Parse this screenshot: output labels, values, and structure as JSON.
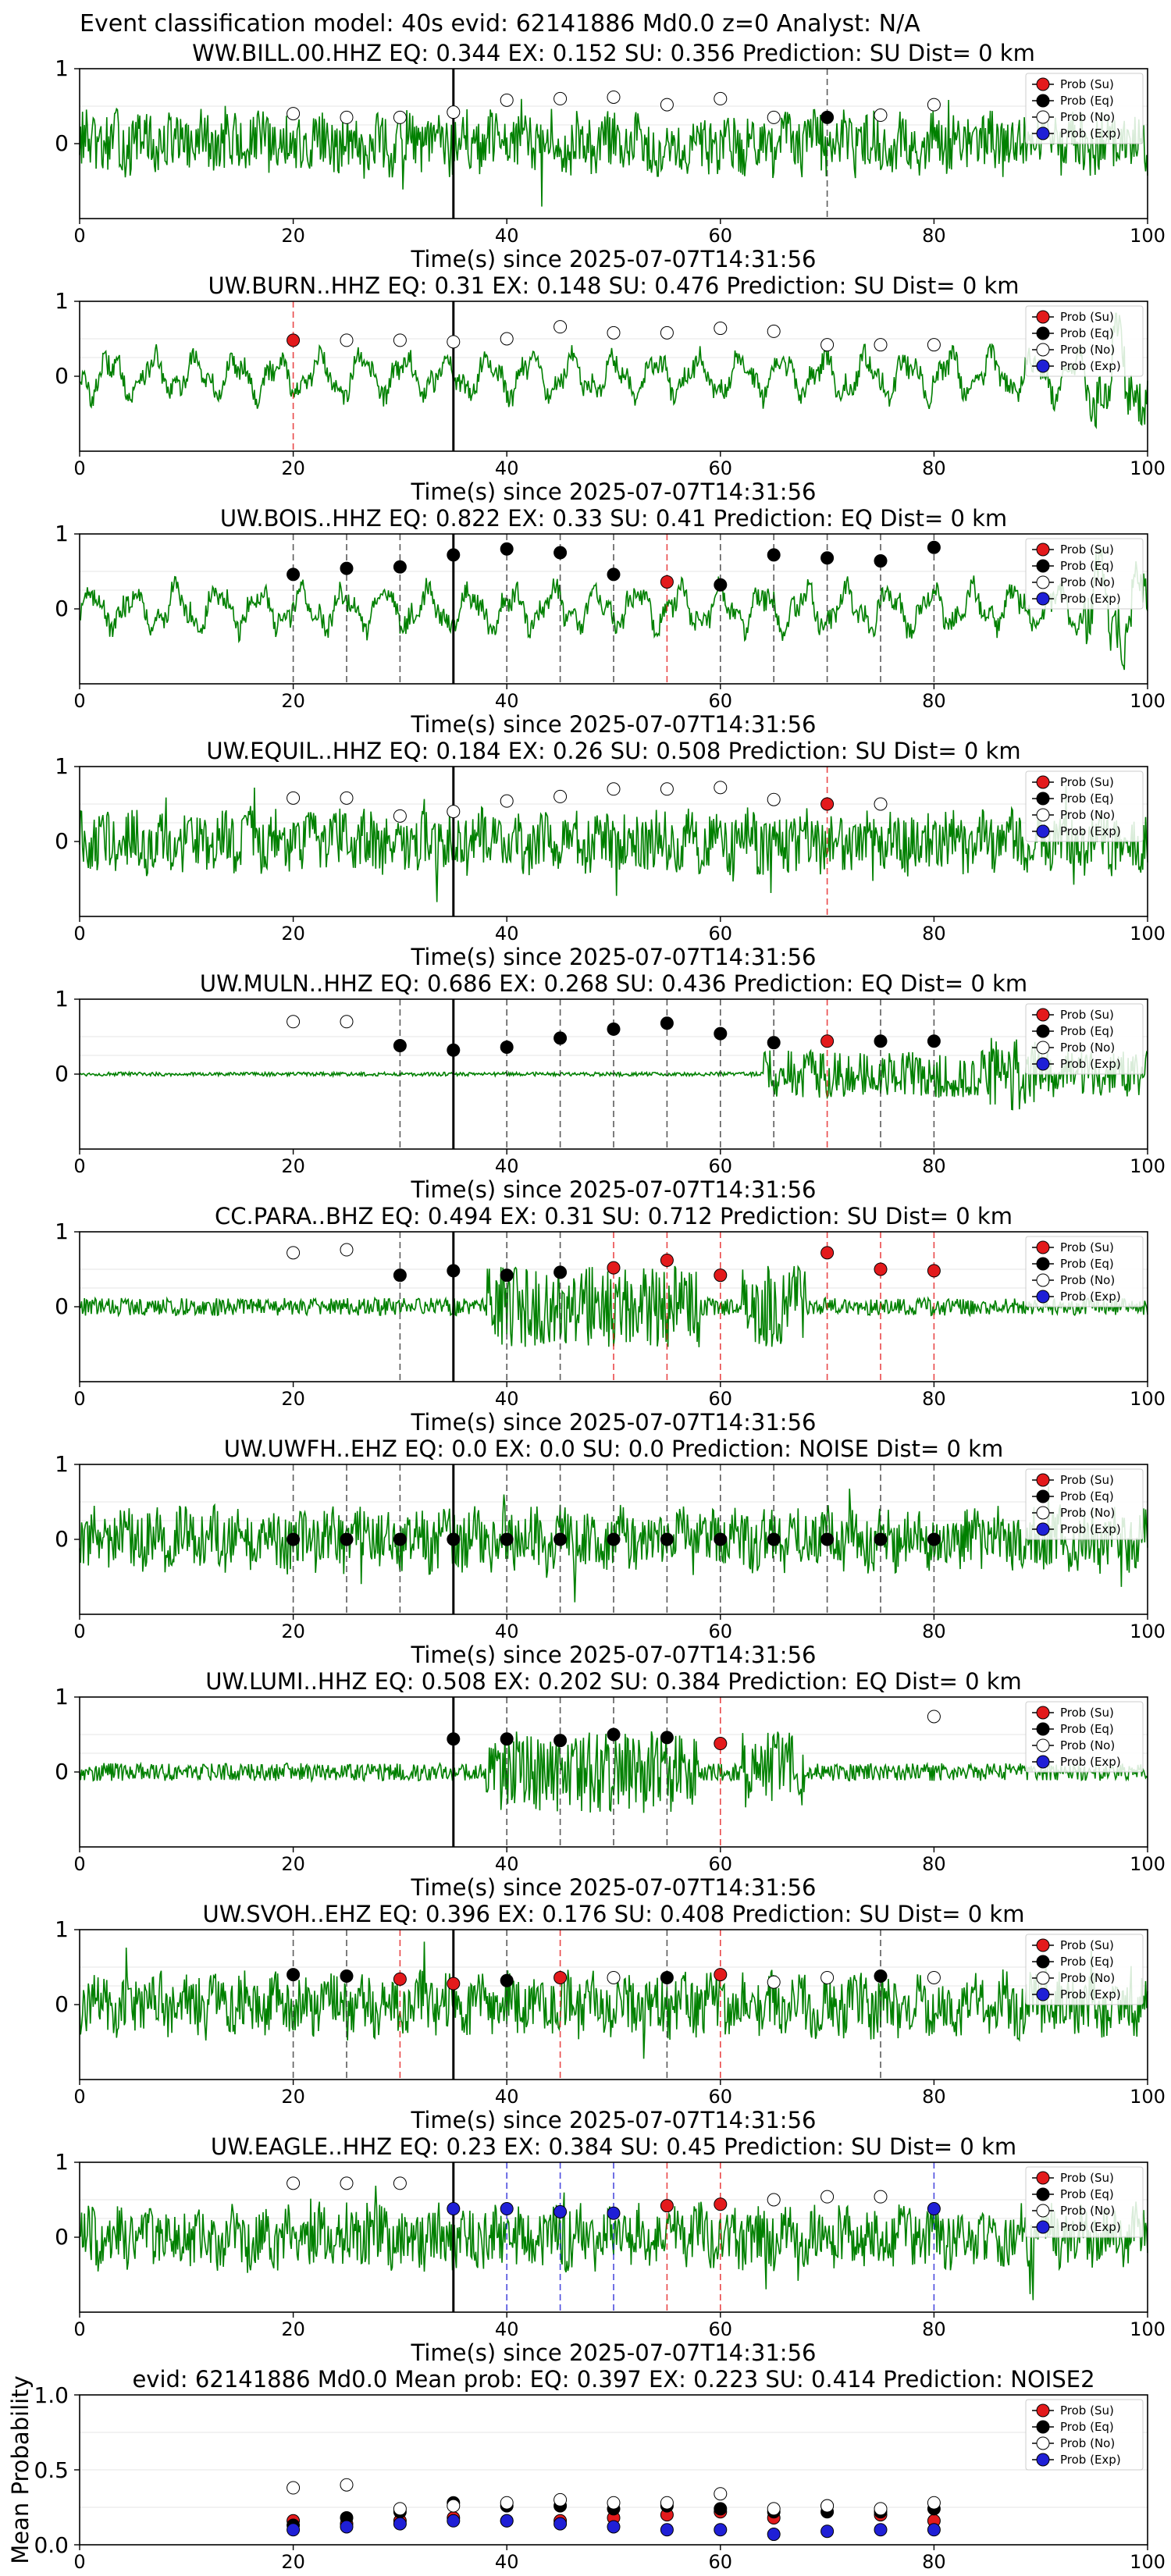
{
  "figure_title": "Event classification model: 40s evid: 62141886 Md0.0 z=0 Analyst: N/A",
  "legend_labels": [
    "Prob (Su)",
    "Prob (Eq)",
    "Prob (No)",
    "Prob (Exp)"
  ],
  "colors": {
    "su": "#e31a1c",
    "eq": "#000000",
    "no": "#ffffff",
    "exp": "#1f1fd6",
    "trace": "#008000",
    "vline_main": "#000000",
    "grid": "#e6e6e6"
  },
  "chart_data": [
    {
      "type": "line",
      "title": "WW.BILL.00.HHZ   EQ: 0.344  EX: 0.152  SU: 0.356   Prediction: SU    Dist= 0 km",
      "xlabel": "Time(s) since 2025-07-07T14:31:56",
      "xlim": [
        0,
        100
      ],
      "ylim": [
        -1,
        1
      ],
      "xticks": [
        0,
        20,
        40,
        60,
        80,
        100
      ],
      "yticks": [
        0,
        1
      ],
      "vline": 35,
      "trace_style": "noise",
      "markers": [
        {
          "t": 20,
          "p": 0.4,
          "c": "no"
        },
        {
          "t": 25,
          "p": 0.35,
          "c": "no"
        },
        {
          "t": 30,
          "p": 0.35,
          "c": "no"
        },
        {
          "t": 35,
          "p": 0.42,
          "c": "no"
        },
        {
          "t": 40,
          "p": 0.58,
          "c": "no"
        },
        {
          "t": 45,
          "p": 0.6,
          "c": "no"
        },
        {
          "t": 50,
          "p": 0.62,
          "c": "no"
        },
        {
          "t": 55,
          "p": 0.52,
          "c": "no"
        },
        {
          "t": 60,
          "p": 0.6,
          "c": "no"
        },
        {
          "t": 65,
          "p": 0.35,
          "c": "no"
        },
        {
          "t": 70,
          "p": 0.35,
          "c": "eq"
        },
        {
          "t": 75,
          "p": 0.38,
          "c": "no"
        },
        {
          "t": 80,
          "p": 0.52,
          "c": "no"
        }
      ]
    },
    {
      "type": "line",
      "title": "UW.BURN..HHZ   EQ: 0.31  EX: 0.148  SU: 0.476   Prediction: SU    Dist= 0 km",
      "xlabel": "Time(s) since 2025-07-07T14:31:56",
      "xlim": [
        0,
        100
      ],
      "ylim": [
        -1,
        1
      ],
      "xticks": [
        0,
        20,
        40,
        60,
        80,
        100
      ],
      "yticks": [
        0,
        1
      ],
      "vline": 35,
      "trace_style": "wavy",
      "markers": [
        {
          "t": 20,
          "p": 0.48,
          "c": "su"
        },
        {
          "t": 25,
          "p": 0.48,
          "c": "no"
        },
        {
          "t": 30,
          "p": 0.48,
          "c": "no"
        },
        {
          "t": 35,
          "p": 0.46,
          "c": "no"
        },
        {
          "t": 40,
          "p": 0.5,
          "c": "no"
        },
        {
          "t": 45,
          "p": 0.66,
          "c": "no"
        },
        {
          "t": 50,
          "p": 0.58,
          "c": "no"
        },
        {
          "t": 55,
          "p": 0.58,
          "c": "no"
        },
        {
          "t": 60,
          "p": 0.64,
          "c": "no"
        },
        {
          "t": 65,
          "p": 0.6,
          "c": "no"
        },
        {
          "t": 70,
          "p": 0.42,
          "c": "no"
        },
        {
          "t": 75,
          "p": 0.42,
          "c": "no"
        },
        {
          "t": 80,
          "p": 0.42,
          "c": "no"
        }
      ]
    },
    {
      "type": "line",
      "title": "UW.BOIS..HHZ   EQ: 0.822  EX: 0.33  SU: 0.41   Prediction: EQ    Dist= 0 km",
      "xlabel": "Time(s) since 2025-07-07T14:31:56",
      "xlim": [
        0,
        100
      ],
      "ylim": [
        -1,
        1
      ],
      "xticks": [
        0,
        20,
        40,
        60,
        80,
        100
      ],
      "yticks": [
        0,
        1
      ],
      "vline": 35,
      "trace_style": "wavy",
      "markers": [
        {
          "t": 20,
          "p": 0.46,
          "c": "eq"
        },
        {
          "t": 25,
          "p": 0.54,
          "c": "eq"
        },
        {
          "t": 30,
          "p": 0.56,
          "c": "eq"
        },
        {
          "t": 35,
          "p": 0.72,
          "c": "eq"
        },
        {
          "t": 40,
          "p": 0.8,
          "c": "eq"
        },
        {
          "t": 45,
          "p": 0.75,
          "c": "eq"
        },
        {
          "t": 50,
          "p": 0.46,
          "c": "eq"
        },
        {
          "t": 55,
          "p": 0.36,
          "c": "su"
        },
        {
          "t": 60,
          "p": 0.32,
          "c": "eq"
        },
        {
          "t": 65,
          "p": 0.72,
          "c": "eq"
        },
        {
          "t": 70,
          "p": 0.68,
          "c": "eq"
        },
        {
          "t": 75,
          "p": 0.64,
          "c": "eq"
        },
        {
          "t": 80,
          "p": 0.82,
          "c": "eq"
        }
      ]
    },
    {
      "type": "line",
      "title": "UW.EQUIL..HHZ   EQ: 0.184  EX: 0.26  SU: 0.508   Prediction: SU    Dist= 0 km",
      "xlabel": "Time(s) since 2025-07-07T14:31:56",
      "xlim": [
        0,
        100
      ],
      "ylim": [
        -1,
        1
      ],
      "xticks": [
        0,
        20,
        40,
        60,
        80,
        100
      ],
      "yticks": [
        0,
        1
      ],
      "vline": 35,
      "trace_style": "noise",
      "markers": [
        {
          "t": 20,
          "p": 0.58,
          "c": "no"
        },
        {
          "t": 25,
          "p": 0.58,
          "c": "no"
        },
        {
          "t": 30,
          "p": 0.34,
          "c": "no"
        },
        {
          "t": 35,
          "p": 0.4,
          "c": "no"
        },
        {
          "t": 40,
          "p": 0.54,
          "c": "no"
        },
        {
          "t": 45,
          "p": 0.6,
          "c": "no"
        },
        {
          "t": 50,
          "p": 0.7,
          "c": "no"
        },
        {
          "t": 55,
          "p": 0.7,
          "c": "no"
        },
        {
          "t": 60,
          "p": 0.72,
          "c": "no"
        },
        {
          "t": 65,
          "p": 0.56,
          "c": "no"
        },
        {
          "t": 70,
          "p": 0.5,
          "c": "su"
        },
        {
          "t": 75,
          "p": 0.5,
          "c": "no"
        }
      ]
    },
    {
      "type": "line",
      "title": "UW.MULN..HHZ   EQ: 0.686  EX: 0.268  SU: 0.436   Prediction: EQ    Dist= 0 km",
      "xlabel": "Time(s) since 2025-07-07T14:31:56",
      "xlim": [
        0,
        100
      ],
      "ylim": [
        -1,
        1
      ],
      "xticks": [
        0,
        20,
        40,
        60,
        80,
        100
      ],
      "yticks": [
        0,
        1
      ],
      "vline": 35,
      "trace_style": "quiet",
      "markers": [
        {
          "t": 20,
          "p": 0.7,
          "c": "no"
        },
        {
          "t": 25,
          "p": 0.7,
          "c": "no"
        },
        {
          "t": 30,
          "p": 0.38,
          "c": "eq"
        },
        {
          "t": 35,
          "p": 0.32,
          "c": "eq"
        },
        {
          "t": 40,
          "p": 0.36,
          "c": "eq"
        },
        {
          "t": 45,
          "p": 0.48,
          "c": "eq"
        },
        {
          "t": 50,
          "p": 0.6,
          "c": "eq"
        },
        {
          "t": 55,
          "p": 0.68,
          "c": "eq"
        },
        {
          "t": 60,
          "p": 0.54,
          "c": "eq"
        },
        {
          "t": 65,
          "p": 0.42,
          "c": "eq"
        },
        {
          "t": 70,
          "p": 0.44,
          "c": "su"
        },
        {
          "t": 75,
          "p": 0.44,
          "c": "eq"
        },
        {
          "t": 80,
          "p": 0.44,
          "c": "eq"
        }
      ]
    },
    {
      "type": "line",
      "title": "CC.PARA..BHZ   EQ: 0.494  EX: 0.31  SU: 0.712   Prediction: SU    Dist= 0 km",
      "xlabel": "Time(s) since 2025-07-07T14:31:56",
      "xlim": [
        0,
        100
      ],
      "ylim": [
        -1,
        1
      ],
      "xticks": [
        0,
        20,
        40,
        60,
        80,
        100
      ],
      "yticks": [
        0,
        1
      ],
      "vline": 35,
      "trace_style": "bursts",
      "markers": [
        {
          "t": 20,
          "p": 0.72,
          "c": "no"
        },
        {
          "t": 25,
          "p": 0.76,
          "c": "no"
        },
        {
          "t": 30,
          "p": 0.42,
          "c": "eq"
        },
        {
          "t": 35,
          "p": 0.48,
          "c": "eq"
        },
        {
          "t": 40,
          "p": 0.42,
          "c": "eq"
        },
        {
          "t": 45,
          "p": 0.46,
          "c": "eq"
        },
        {
          "t": 50,
          "p": 0.52,
          "c": "su"
        },
        {
          "t": 55,
          "p": 0.62,
          "c": "su"
        },
        {
          "t": 60,
          "p": 0.42,
          "c": "su"
        },
        {
          "t": 70,
          "p": 0.72,
          "c": "su"
        },
        {
          "t": 75,
          "p": 0.5,
          "c": "su"
        },
        {
          "t": 80,
          "p": 0.48,
          "c": "su"
        }
      ]
    },
    {
      "type": "line",
      "title": "UW.UWFH..EHZ   EQ: 0.0  EX: 0.0  SU: 0.0   Prediction: NOISE    Dist= 0 km",
      "xlabel": "Time(s) since 2025-07-07T14:31:56",
      "xlim": [
        0,
        100
      ],
      "ylim": [
        -1,
        1
      ],
      "xticks": [
        0,
        20,
        40,
        60,
        80,
        100
      ],
      "yticks": [
        0,
        1
      ],
      "vline": 35,
      "trace_style": "noise",
      "markers": [
        {
          "t": 20,
          "p": 0.0,
          "c": "eq"
        },
        {
          "t": 25,
          "p": 0.0,
          "c": "eq"
        },
        {
          "t": 30,
          "p": 0.0,
          "c": "eq"
        },
        {
          "t": 35,
          "p": 0.0,
          "c": "eq"
        },
        {
          "t": 40,
          "p": 0.0,
          "c": "eq"
        },
        {
          "t": 45,
          "p": 0.0,
          "c": "eq"
        },
        {
          "t": 50,
          "p": 0.0,
          "c": "eq"
        },
        {
          "t": 55,
          "p": 0.0,
          "c": "eq"
        },
        {
          "t": 60,
          "p": 0.0,
          "c": "eq"
        },
        {
          "t": 65,
          "p": 0.0,
          "c": "eq"
        },
        {
          "t": 70,
          "p": 0.0,
          "c": "eq"
        },
        {
          "t": 75,
          "p": 0.0,
          "c": "eq"
        },
        {
          "t": 80,
          "p": 0.0,
          "c": "eq"
        }
      ]
    },
    {
      "type": "line",
      "title": "UW.LUMI..HHZ   EQ: 0.508  EX: 0.202  SU: 0.384   Prediction: EQ    Dist= 0 km",
      "xlabel": "Time(s) since 2025-07-07T14:31:56",
      "xlim": [
        0,
        100
      ],
      "ylim": [
        -1,
        1
      ],
      "xticks": [
        0,
        20,
        40,
        60,
        80,
        100
      ],
      "yticks": [
        0,
        1
      ],
      "vline": 35,
      "trace_style": "bursts",
      "markers": [
        {
          "t": 35,
          "p": 0.44,
          "c": "eq"
        },
        {
          "t": 40,
          "p": 0.44,
          "c": "eq"
        },
        {
          "t": 45,
          "p": 0.42,
          "c": "eq"
        },
        {
          "t": 50,
          "p": 0.5,
          "c": "eq"
        },
        {
          "t": 55,
          "p": 0.46,
          "c": "eq"
        },
        {
          "t": 60,
          "p": 0.38,
          "c": "su"
        },
        {
          "t": 80,
          "p": 0.74,
          "c": "no"
        }
      ]
    },
    {
      "type": "line",
      "title": "UW.SVOH..EHZ   EQ: 0.396  EX: 0.176  SU: 0.408   Prediction: SU    Dist= 0 km",
      "xlabel": "Time(s) since 2025-07-07T14:31:56",
      "xlim": [
        0,
        100
      ],
      "ylim": [
        -1,
        1
      ],
      "xticks": [
        0,
        20,
        40,
        60,
        80,
        100
      ],
      "yticks": [
        0,
        1
      ],
      "vline": 35,
      "trace_style": "noise",
      "markers": [
        {
          "t": 20,
          "p": 0.4,
          "c": "eq"
        },
        {
          "t": 25,
          "p": 0.38,
          "c": "eq"
        },
        {
          "t": 30,
          "p": 0.34,
          "c": "su"
        },
        {
          "t": 35,
          "p": 0.28,
          "c": "su"
        },
        {
          "t": 40,
          "p": 0.32,
          "c": "eq"
        },
        {
          "t": 45,
          "p": 0.36,
          "c": "su"
        },
        {
          "t": 50,
          "p": 0.36,
          "c": "no"
        },
        {
          "t": 55,
          "p": 0.36,
          "c": "eq"
        },
        {
          "t": 60,
          "p": 0.4,
          "c": "su"
        },
        {
          "t": 65,
          "p": 0.3,
          "c": "no"
        },
        {
          "t": 70,
          "p": 0.36,
          "c": "no"
        },
        {
          "t": 75,
          "p": 0.38,
          "c": "eq"
        },
        {
          "t": 80,
          "p": 0.36,
          "c": "no"
        }
      ]
    },
    {
      "type": "line",
      "title": "UW.EAGLE..HHZ   EQ: 0.23  EX: 0.384  SU: 0.45   Prediction: SU    Dist= 0 km",
      "xlabel": "Time(s) since 2025-07-07T14:31:56",
      "xlim": [
        0,
        100
      ],
      "ylim": [
        -1,
        1
      ],
      "xticks": [
        0,
        20,
        40,
        60,
        80,
        100
      ],
      "yticks": [
        0,
        1
      ],
      "vline": 35,
      "trace_style": "noise",
      "markers": [
        {
          "t": 20,
          "p": 0.72,
          "c": "no"
        },
        {
          "t": 25,
          "p": 0.72,
          "c": "no"
        },
        {
          "t": 30,
          "p": 0.72,
          "c": "no"
        },
        {
          "t": 35,
          "p": 0.38,
          "c": "exp"
        },
        {
          "t": 40,
          "p": 0.38,
          "c": "exp"
        },
        {
          "t": 45,
          "p": 0.34,
          "c": "exp"
        },
        {
          "t": 50,
          "p": 0.32,
          "c": "exp"
        },
        {
          "t": 55,
          "p": 0.42,
          "c": "su"
        },
        {
          "t": 60,
          "p": 0.44,
          "c": "su"
        },
        {
          "t": 65,
          "p": 0.5,
          "c": "no"
        },
        {
          "t": 70,
          "p": 0.54,
          "c": "no"
        },
        {
          "t": 75,
          "p": 0.54,
          "c": "no"
        },
        {
          "t": 80,
          "p": 0.38,
          "c": "exp"
        }
      ]
    },
    {
      "type": "scatter",
      "title": "evid: 62141886  Md0.0   Mean prob:   EQ: 0.397  EX: 0.223  SU: 0.414   Prediction: NOISE2",
      "ylabel": "Mean Probability",
      "xlim": [
        0,
        100
      ],
      "ylim": [
        0,
        1
      ],
      "xticks": [
        0,
        20,
        40,
        60,
        80,
        100
      ],
      "yticks": [
        0.0,
        0.5,
        1.0
      ],
      "series": [
        {
          "name": "Prob (Su)",
          "c": "su",
          "x": [
            20,
            25,
            30,
            35,
            40,
            45,
            50,
            55,
            60,
            65,
            70,
            75,
            80
          ],
          "y": [
            0.16,
            0.14,
            0.16,
            0.18,
            0.16,
            0.16,
            0.18,
            0.2,
            0.22,
            0.18,
            0.26,
            0.2,
            0.16
          ]
        },
        {
          "name": "Prob (Eq)",
          "c": "eq",
          "x": [
            20,
            25,
            30,
            35,
            40,
            45,
            50,
            55,
            60,
            65,
            70,
            75,
            80
          ],
          "y": [
            0.13,
            0.18,
            0.22,
            0.28,
            0.26,
            0.26,
            0.24,
            0.26,
            0.24,
            0.22,
            0.22,
            0.22,
            0.24
          ]
        },
        {
          "name": "Prob (No)",
          "c": "no",
          "x": [
            20,
            25,
            30,
            35,
            40,
            45,
            50,
            55,
            60,
            65,
            70,
            75,
            80
          ],
          "y": [
            0.38,
            0.4,
            0.24,
            0.26,
            0.28,
            0.3,
            0.28,
            0.28,
            0.34,
            0.24,
            0.26,
            0.24,
            0.28
          ]
        },
        {
          "name": "Prob (Exp)",
          "c": "exp",
          "x": [
            20,
            25,
            30,
            35,
            40,
            45,
            50,
            55,
            60,
            65,
            70,
            75,
            80
          ],
          "y": [
            0.1,
            0.12,
            0.14,
            0.16,
            0.16,
            0.14,
            0.12,
            0.1,
            0.1,
            0.07,
            0.09,
            0.1,
            0.1
          ]
        }
      ]
    }
  ]
}
